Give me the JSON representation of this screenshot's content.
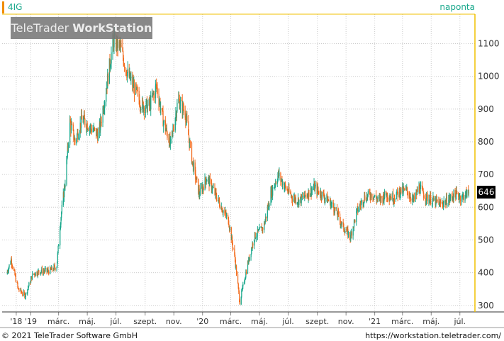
{
  "header": {
    "symbol": "4IG",
    "interval": "naponta"
  },
  "watermark": {
    "part1": "TeleTrader ",
    "part2": "WorkStation"
  },
  "footer": {
    "copyright": "© 2021 TeleTrader Software GmbH",
    "url": "https://workstation.teletrader.com/"
  },
  "chart_data": {
    "type": "candlestick",
    "title": "",
    "xlabel": "",
    "ylabel": "",
    "ylim": [
      280,
      1190
    ],
    "yticks": [
      300,
      400,
      500,
      600,
      700,
      800,
      900,
      1000,
      1100
    ],
    "xticks": [
      {
        "label": "'18",
        "date": "2018-12-01"
      },
      {
        "label": "'19",
        "date": "2019-01-01"
      },
      {
        "label": "márc.",
        "date": "2019-03-01"
      },
      {
        "label": "máj.",
        "date": "2019-05-01"
      },
      {
        "label": "júl.",
        "date": "2019-07-01"
      },
      {
        "label": "szept.",
        "date": "2019-09-01"
      },
      {
        "label": "nov.",
        "date": "2019-11-01"
      },
      {
        "label": "'20",
        "date": "2020-01-01"
      },
      {
        "label": "márc.",
        "date": "2020-03-01"
      },
      {
        "label": "máj.",
        "date": "2020-05-01"
      },
      {
        "label": "júl.",
        "date": "2020-07-01"
      },
      {
        "label": "szept.",
        "date": "2020-09-01"
      },
      {
        "label": "nov.",
        "date": "2020-11-01"
      },
      {
        "label": "'21",
        "date": "2021-01-01"
      },
      {
        "label": "márc.",
        "date": "2021-03-01"
      },
      {
        "label": "máj.",
        "date": "2021-05-01"
      },
      {
        "label": "júl.",
        "date": "2021-07-01"
      }
    ],
    "last_price": 646,
    "grid": true,
    "colors": {
      "up": "#1aa88c",
      "down": "#f26a1b",
      "grid": "#cccccc",
      "axis": "#f0c000",
      "text": "#333333"
    },
    "close_path": [
      {
        "date": "2018-11-10",
        "close": 395
      },
      {
        "date": "2018-11-20",
        "close": 440
      },
      {
        "date": "2018-12-05",
        "close": 350
      },
      {
        "date": "2018-12-20",
        "close": 330
      },
      {
        "date": "2019-01-05",
        "close": 395
      },
      {
        "date": "2019-01-20",
        "close": 405
      },
      {
        "date": "2019-02-10",
        "close": 405
      },
      {
        "date": "2019-02-25",
        "close": 420
      },
      {
        "date": "2019-03-05",
        "close": 560
      },
      {
        "date": "2019-03-15",
        "close": 680
      },
      {
        "date": "2019-03-25",
        "close": 860
      },
      {
        "date": "2019-04-05",
        "close": 800
      },
      {
        "date": "2019-04-20",
        "close": 870
      },
      {
        "date": "2019-05-10",
        "close": 840
      },
      {
        "date": "2019-05-25",
        "close": 820
      },
      {
        "date": "2019-06-10",
        "close": 960
      },
      {
        "date": "2019-06-25",
        "close": 1110
      },
      {
        "date": "2019-07-10",
        "close": 1090
      },
      {
        "date": "2019-07-25",
        "close": 1010
      },
      {
        "date": "2019-08-10",
        "close": 960
      },
      {
        "date": "2019-08-25",
        "close": 910
      },
      {
        "date": "2019-09-10",
        "close": 910
      },
      {
        "date": "2019-09-25",
        "close": 970
      },
      {
        "date": "2019-10-10",
        "close": 860
      },
      {
        "date": "2019-10-25",
        "close": 790
      },
      {
        "date": "2019-11-10",
        "close": 930
      },
      {
        "date": "2019-11-25",
        "close": 890
      },
      {
        "date": "2019-12-10",
        "close": 740
      },
      {
        "date": "2019-12-25",
        "close": 640
      },
      {
        "date": "2020-01-10",
        "close": 690
      },
      {
        "date": "2020-01-25",
        "close": 650
      },
      {
        "date": "2020-02-10",
        "close": 600
      },
      {
        "date": "2020-02-25",
        "close": 560
      },
      {
        "date": "2020-03-10",
        "close": 440
      },
      {
        "date": "2020-03-20",
        "close": 310
      },
      {
        "date": "2020-04-05",
        "close": 420
      },
      {
        "date": "2020-04-20",
        "close": 510
      },
      {
        "date": "2020-05-10",
        "close": 540
      },
      {
        "date": "2020-05-25",
        "close": 640
      },
      {
        "date": "2020-06-10",
        "close": 700
      },
      {
        "date": "2020-06-25",
        "close": 660
      },
      {
        "date": "2020-07-10",
        "close": 630
      },
      {
        "date": "2020-07-25",
        "close": 620
      },
      {
        "date": "2020-08-10",
        "close": 640
      },
      {
        "date": "2020-08-25",
        "close": 660
      },
      {
        "date": "2020-09-10",
        "close": 640
      },
      {
        "date": "2020-09-25",
        "close": 620
      },
      {
        "date": "2020-10-10",
        "close": 590
      },
      {
        "date": "2020-10-25",
        "close": 540
      },
      {
        "date": "2020-11-10",
        "close": 510
      },
      {
        "date": "2020-11-25",
        "close": 590
      },
      {
        "date": "2020-12-10",
        "close": 630
      },
      {
        "date": "2020-12-25",
        "close": 640
      },
      {
        "date": "2021-01-10",
        "close": 620
      },
      {
        "date": "2021-01-25",
        "close": 640
      },
      {
        "date": "2021-02-10",
        "close": 630
      },
      {
        "date": "2021-02-25",
        "close": 650
      },
      {
        "date": "2021-03-10",
        "close": 650
      },
      {
        "date": "2021-03-25",
        "close": 620
      },
      {
        "date": "2021-04-05",
        "close": 660
      },
      {
        "date": "2021-04-20",
        "close": 630
      },
      {
        "date": "2021-05-05",
        "close": 620
      },
      {
        "date": "2021-05-20",
        "close": 610
      },
      {
        "date": "2021-06-05",
        "close": 620
      },
      {
        "date": "2021-06-20",
        "close": 640
      },
      {
        "date": "2021-07-05",
        "close": 630
      },
      {
        "date": "2021-07-20",
        "close": 646
      }
    ]
  }
}
